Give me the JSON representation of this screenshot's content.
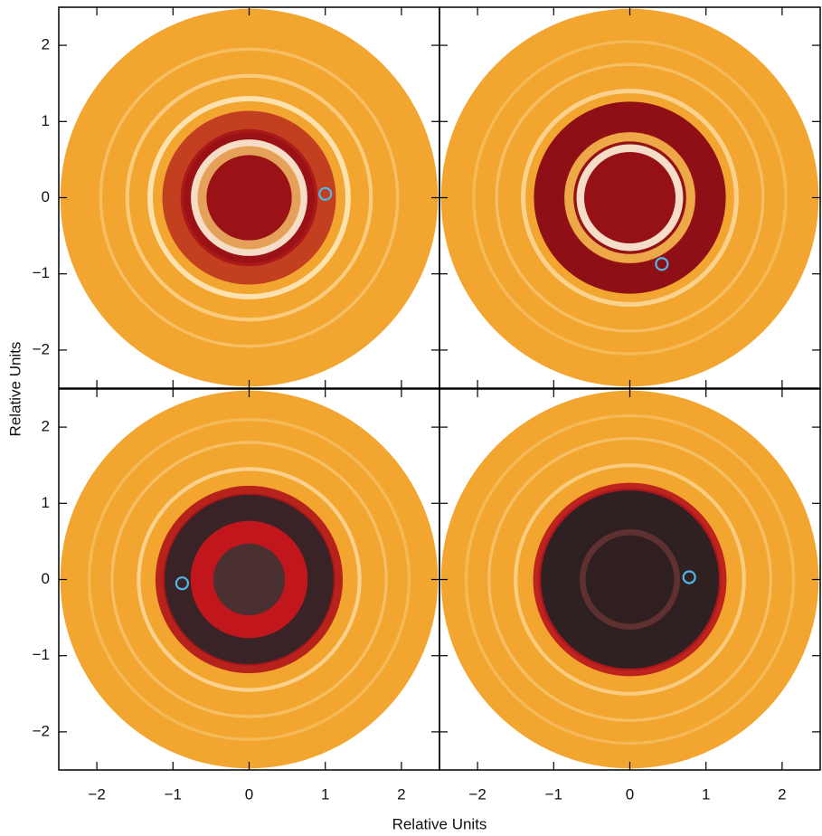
{
  "xlabel": "Relative Units",
  "ylabel": "Relative Units",
  "xlim": [
    -2.5,
    2.5
  ],
  "ylim": [
    -2.5,
    2.5
  ],
  "xticks": [
    {
      "value": -2,
      "label": "−2"
    },
    {
      "value": -1,
      "label": "−1"
    },
    0,
    1,
    2
  ],
  "yticks": [
    {
      "value": -2,
      "label": "−2"
    },
    {
      "value": -1,
      "label": "−1"
    },
    0,
    1,
    2
  ],
  "chart_data": [
    {
      "type": "scatter",
      "x": [
        1.0
      ],
      "y": [
        0.05
      ],
      "color": "#4fb8e8"
    },
    {
      "type": "scatter",
      "x": [
        0.42
      ],
      "y": [
        -0.87
      ],
      "color": "#4fb8e8"
    },
    {
      "type": "scatter",
      "x": [
        -0.88
      ],
      "y": [
        -0.05
      ],
      "color": "#4fb8e8"
    },
    {
      "type": "scatter",
      "x": [
        0.78
      ],
      "y": [
        0.03
      ],
      "color": "#4fb8e8"
    }
  ]
}
